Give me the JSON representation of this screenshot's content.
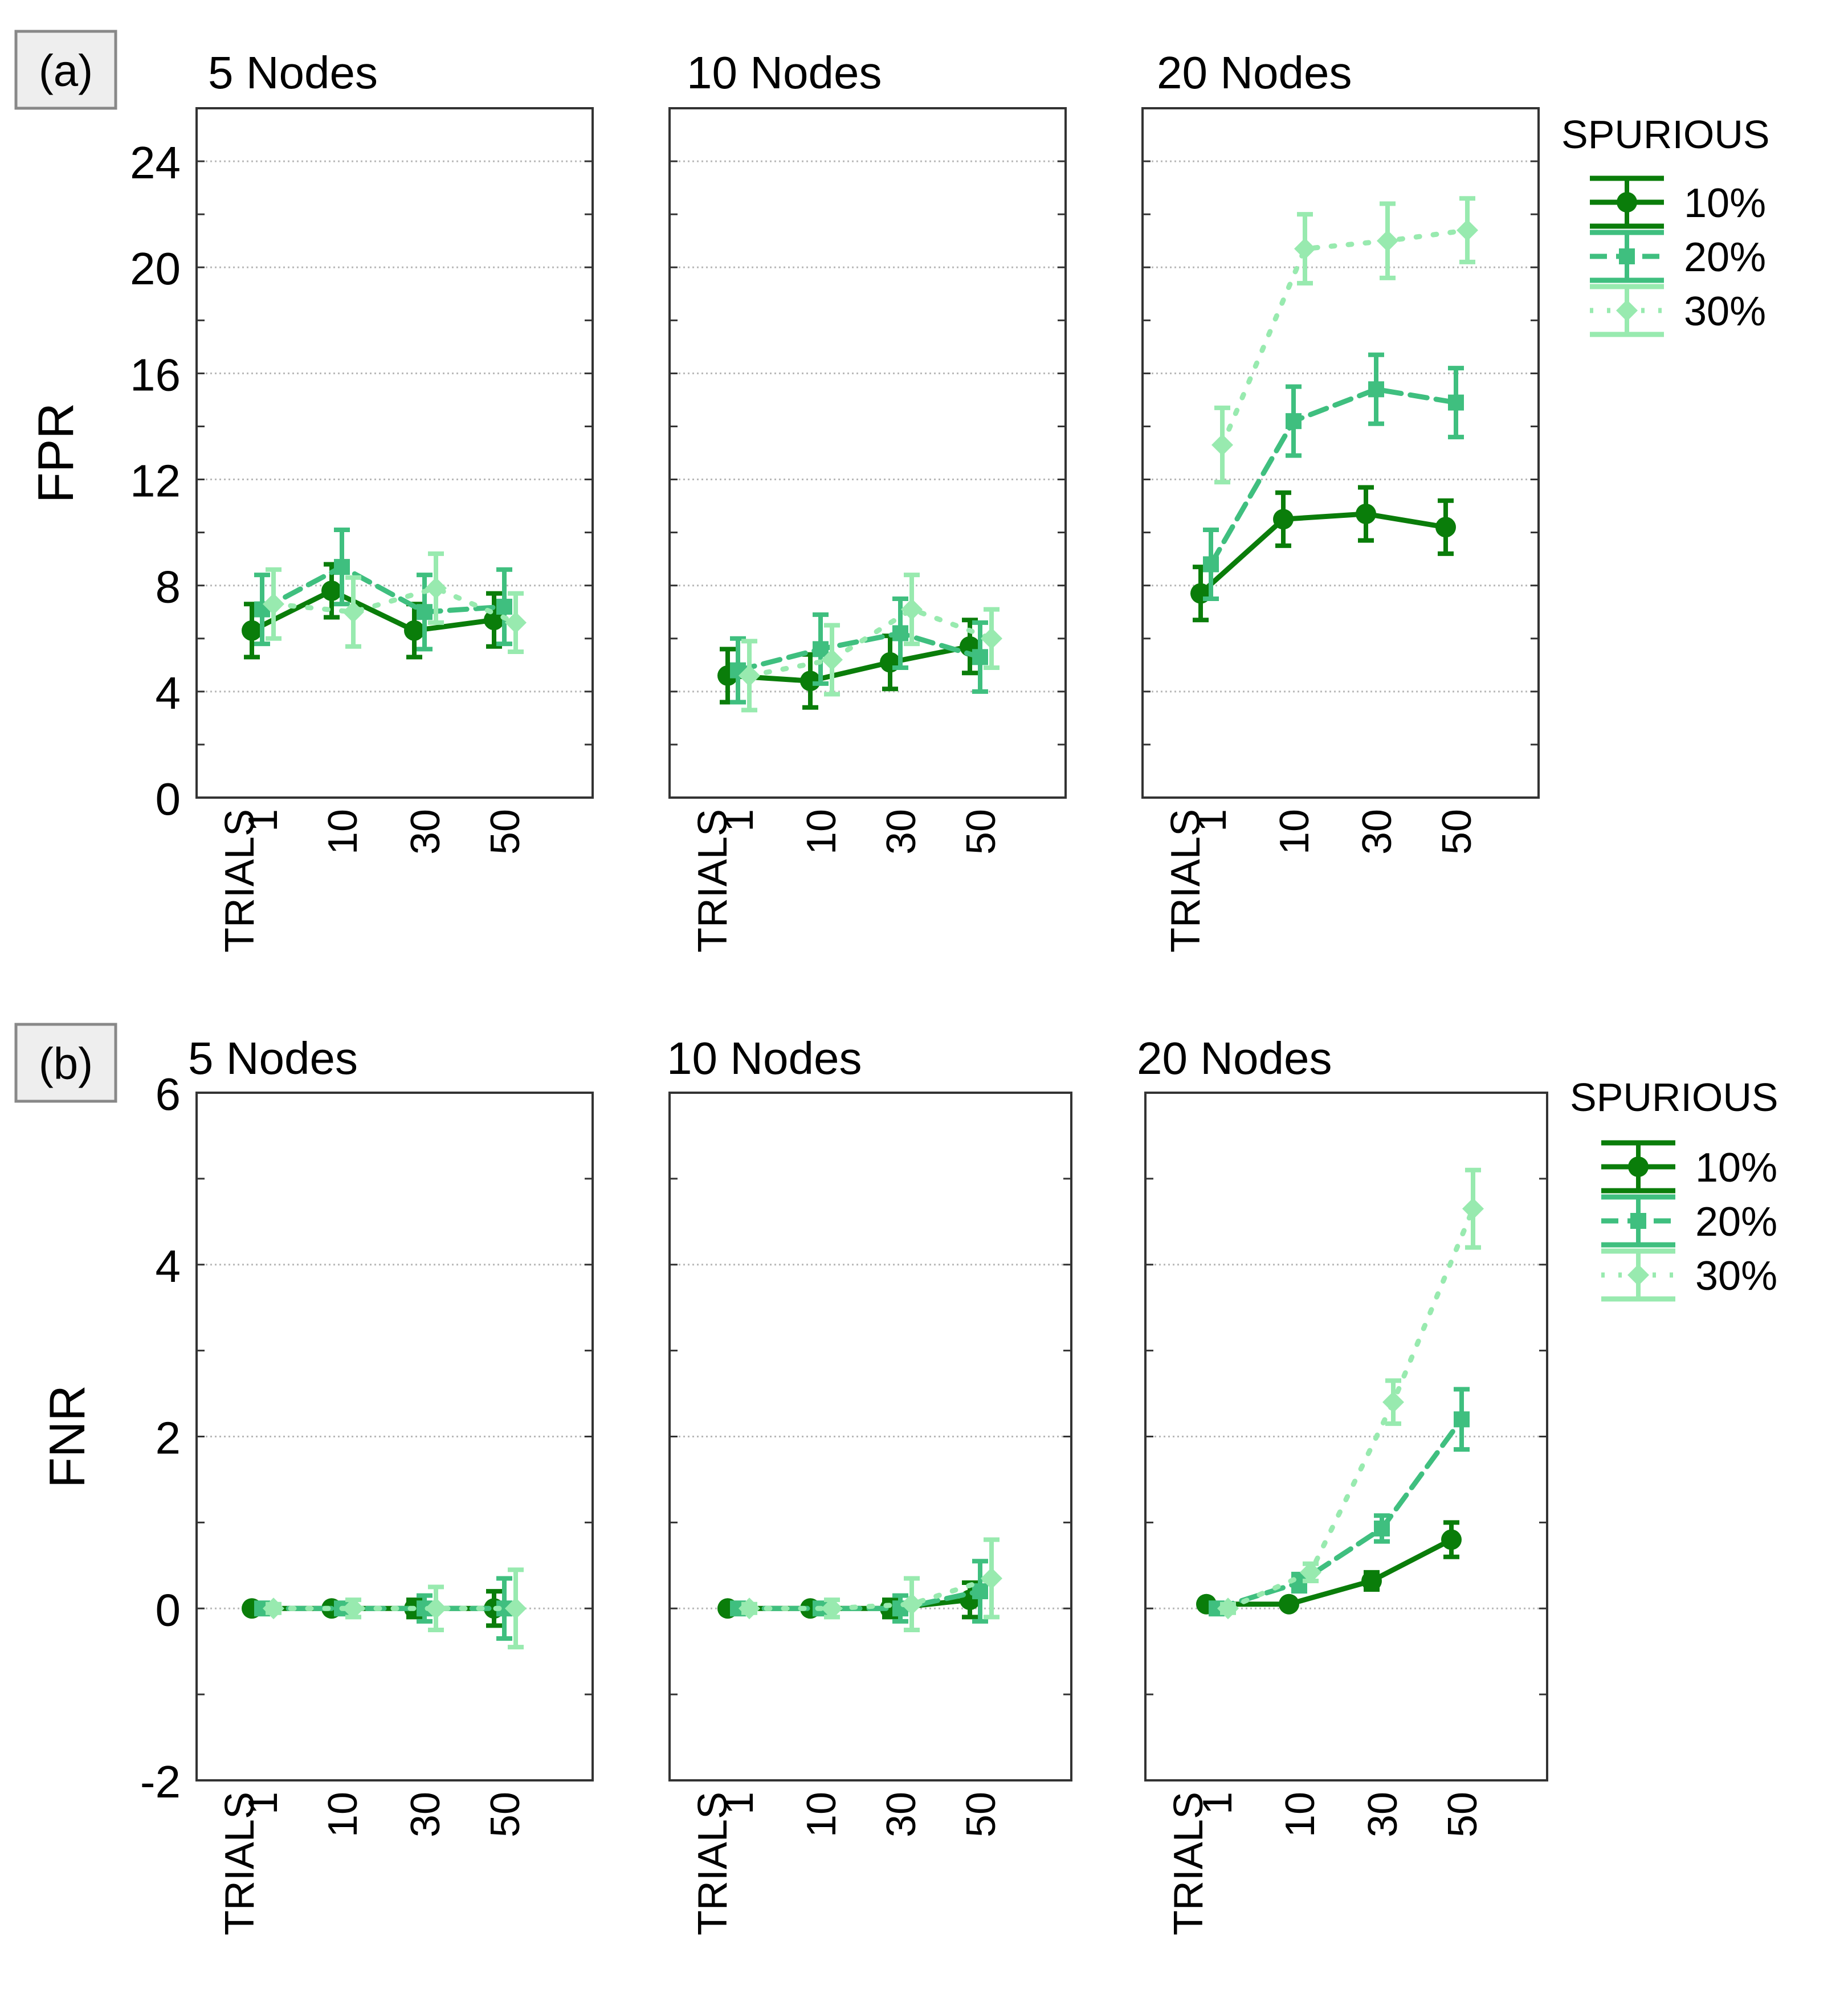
{
  "chart_data": [
    {
      "type": "line",
      "tag": "(a)",
      "ylabel": "FPR",
      "xlabel": "TRIALS",
      "categories": [
        "1",
        "10",
        "30",
        "50"
      ],
      "yticks": [
        "0",
        "4",
        "8",
        "12",
        "16",
        "20",
        "24"
      ],
      "ylim": [
        0,
        26
      ],
      "grid": true,
      "legend": {
        "title": "SPURIOUS",
        "entries": [
          "10%",
          "20%",
          "30%"
        ],
        "placement": "right"
      },
      "panels": [
        {
          "title": "5 Nodes",
          "series": [
            {
              "name": "10%",
              "values": [
                6.3,
                7.8,
                6.3,
                6.7
              ],
              "errors": [
                1.0,
                1.0,
                1.0,
                1.0
              ]
            },
            {
              "name": "20%",
              "values": [
                7.1,
                8.7,
                7.0,
                7.2
              ],
              "errors": [
                1.3,
                1.4,
                1.4,
                1.4
              ]
            },
            {
              "name": "30%",
              "values": [
                7.3,
                7.0,
                7.9,
                6.6
              ],
              "errors": [
                1.3,
                1.3,
                1.3,
                1.1
              ]
            }
          ]
        },
        {
          "title": "10 Nodes",
          "series": [
            {
              "name": "10%",
              "values": [
                4.6,
                4.4,
                5.1,
                5.7
              ],
              "errors": [
                1.0,
                1.0,
                1.0,
                1.0
              ]
            },
            {
              "name": "20%",
              "values": [
                4.8,
                5.6,
                6.2,
                5.3
              ],
              "errors": [
                1.2,
                1.3,
                1.3,
                1.3
              ]
            },
            {
              "name": "30%",
              "values": [
                4.6,
                5.2,
                7.1,
                6.0
              ],
              "errors": [
                1.3,
                1.3,
                1.3,
                1.1
              ]
            }
          ]
        },
        {
          "title": "20 Nodes",
          "series": [
            {
              "name": "10%",
              "values": [
                7.7,
                10.5,
                10.7,
                10.2
              ],
              "errors": [
                1.0,
                1.0,
                1.0,
                1.0
              ]
            },
            {
              "name": "20%",
              "values": [
                8.8,
                14.2,
                15.4,
                14.9
              ],
              "errors": [
                1.3,
                1.3,
                1.3,
                1.3
              ]
            },
            {
              "name": "30%",
              "values": [
                13.3,
                20.7,
                21.0,
                21.4
              ],
              "errors": [
                1.4,
                1.3,
                1.4,
                1.2
              ]
            }
          ]
        }
      ]
    },
    {
      "type": "line",
      "tag": "(b)",
      "ylabel": "FNR",
      "xlabel": "TRIALS",
      "categories": [
        "1",
        "10",
        "30",
        "50"
      ],
      "yticks": [
        "-2",
        "0",
        "2",
        "4",
        "6"
      ],
      "ylim": [
        -2,
        6
      ],
      "grid": true,
      "legend": {
        "title": "SPURIOUS",
        "entries": [
          "10%",
          "20%",
          "30%"
        ],
        "placement": "right"
      },
      "panels": [
        {
          "title": "5 Nodes",
          "series": [
            {
              "name": "10%",
              "values": [
                0,
                0,
                0,
                0
              ],
              "errors": [
                0.05,
                0.05,
                0.1,
                0.2
              ]
            },
            {
              "name": "20%",
              "values": [
                0,
                0,
                0,
                0
              ],
              "errors": [
                0.05,
                0.05,
                0.15,
                0.35
              ]
            },
            {
              "name": "30%",
              "values": [
                0,
                0,
                0,
                0
              ],
              "errors": [
                0.05,
                0.1,
                0.25,
                0.45
              ]
            }
          ]
        },
        {
          "title": "10 Nodes",
          "series": [
            {
              "name": "10%",
              "values": [
                0,
                0,
                0,
                0.1
              ],
              "errors": [
                0.05,
                0.05,
                0.1,
                0.2
              ]
            },
            {
              "name": "20%",
              "values": [
                0,
                0,
                0,
                0.2
              ],
              "errors": [
                0.05,
                0.05,
                0.15,
                0.35
              ]
            },
            {
              "name": "30%",
              "values": [
                0,
                0,
                0.05,
                0.35
              ],
              "errors": [
                0.05,
                0.1,
                0.3,
                0.45
              ]
            }
          ]
        },
        {
          "title": "20 Nodes",
          "series": [
            {
              "name": "10%",
              "values": [
                0.05,
                0.05,
                0.32,
                0.8
              ],
              "errors": [
                0.05,
                0.05,
                0.1,
                0.2
              ]
            },
            {
              "name": "20%",
              "values": [
                0.0,
                0.3,
                0.93,
                2.2
              ],
              "errors": [
                0.05,
                0.1,
                0.15,
                0.35
              ]
            },
            {
              "name": "30%",
              "values": [
                0.0,
                0.42,
                2.4,
                4.65
              ],
              "errors": [
                0.05,
                0.1,
                0.25,
                0.45
              ]
            }
          ]
        }
      ]
    }
  ],
  "colors": {
    "s10": "#0a7d0a",
    "s20": "#3fbf7f",
    "s30": "#98eaaf",
    "grid": "#b8b8b8",
    "frame": "#333333"
  }
}
